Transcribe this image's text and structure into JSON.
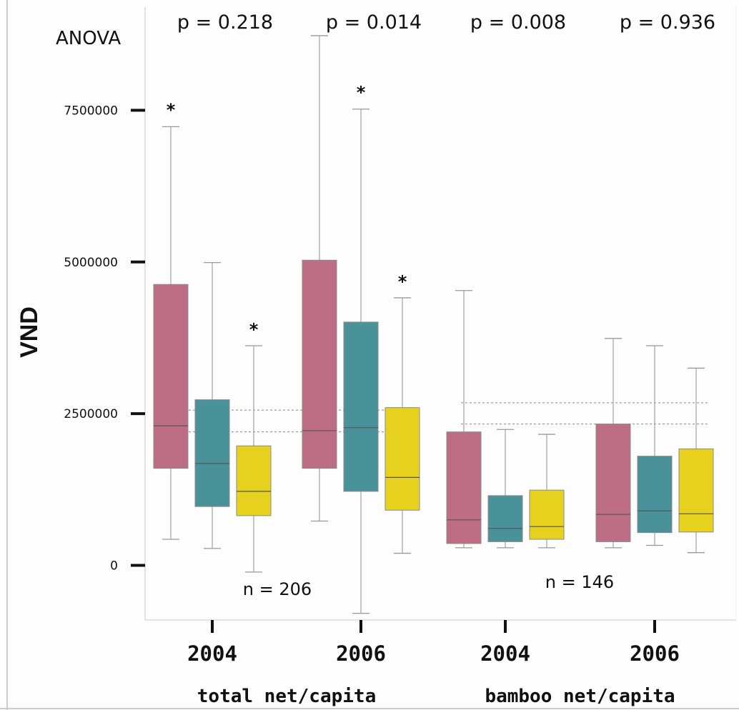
{
  "chart_data": {
    "type": "box",
    "ylabel": "VND",
    "y_ticks": [
      0,
      2500000,
      5000000,
      7500000
    ],
    "y_tick_labels": [
      "0",
      "2500000",
      "5000000",
      "7500000"
    ],
    "ylim": [
      -900000,
      9200000
    ],
    "test_label": "ANOVA",
    "series_colors": [
      "#bd6e84",
      "#4a929a",
      "#e6d21e"
    ],
    "sections": [
      {
        "label": "total net/capita",
        "n_label": "n = 206",
        "reference_lines": [
          2560000,
          2200000
        ],
        "groups": [
          {
            "label": "2004",
            "p_label": "p = 0.218",
            "boxes": [
              {
                "whisker_low": 430000,
                "q1": 1600000,
                "median": 2300000,
                "q3": 4630000,
                "whisker_high": 7230000,
                "outlier_marker": 7550000
              },
              {
                "whisker_low": 280000,
                "q1": 970000,
                "median": 1680000,
                "q3": 2730000,
                "whisker_high": 4990000
              },
              {
                "whisker_low": -110000,
                "q1": 820000,
                "median": 1220000,
                "q3": 1970000,
                "whisker_high": 3620000,
                "outlier_marker": 3930000
              }
            ]
          },
          {
            "label": "2006",
            "p_label": "p = 0.014",
            "boxes": [
              {
                "whisker_low": 730000,
                "q1": 1600000,
                "median": 2220000,
                "q3": 5030000,
                "whisker_high": 8730000
              },
              {
                "whisker_low": -790000,
                "q1": 1220000,
                "median": 2270000,
                "q3": 4010000,
                "whisker_high": 7520000,
                "outlier_marker": 7840000
              },
              {
                "whisker_low": 200000,
                "q1": 910000,
                "median": 1450000,
                "q3": 2600000,
                "whisker_high": 4410000,
                "outlier_marker": 4720000
              }
            ]
          }
        ]
      },
      {
        "label": "bamboo net/capita",
        "n_label": "n = 146",
        "reference_lines": [
          2680000,
          2330000
        ],
        "groups": [
          {
            "label": "2004",
            "p_label": "p = 0.008",
            "boxes": [
              {
                "whisker_low": 290000,
                "q1": 360000,
                "median": 750000,
                "q3": 2200000,
                "whisker_high": 4530000
              },
              {
                "whisker_low": 290000,
                "q1": 390000,
                "median": 610000,
                "q3": 1150000,
                "whisker_high": 2240000
              },
              {
                "whisker_low": 290000,
                "q1": 430000,
                "median": 640000,
                "q3": 1240000,
                "whisker_high": 2160000
              }
            ]
          },
          {
            "label": "2006",
            "p_label": "p = 0.936",
            "boxes": [
              {
                "whisker_low": 290000,
                "q1": 390000,
                "median": 840000,
                "q3": 2330000,
                "whisker_high": 3740000
              },
              {
                "whisker_low": 330000,
                "q1": 540000,
                "median": 900000,
                "q3": 1800000,
                "whisker_high": 3620000
              },
              {
                "whisker_low": 210000,
                "q1": 550000,
                "median": 850000,
                "q3": 1920000,
                "whisker_high": 3250000
              }
            ]
          }
        ]
      }
    ]
  }
}
